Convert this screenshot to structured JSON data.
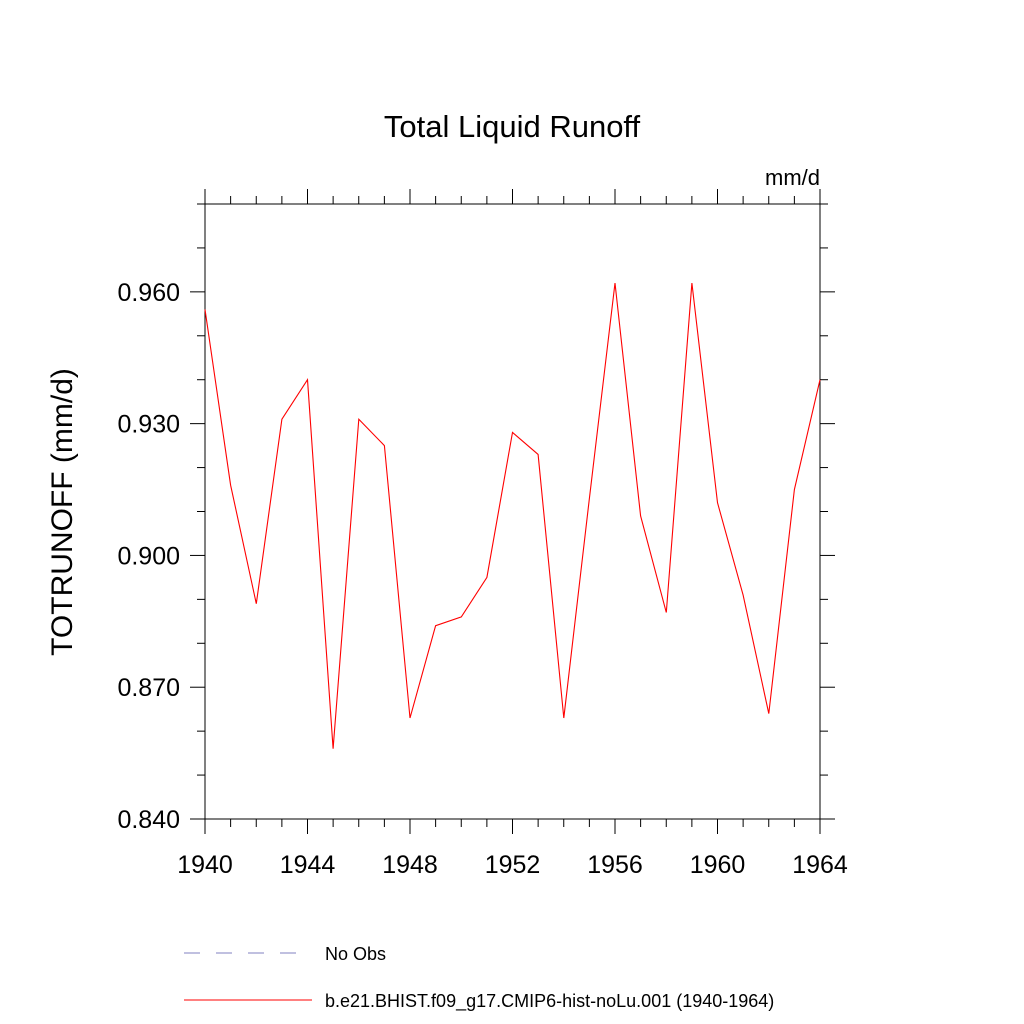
{
  "chart_data": {
    "type": "line",
    "title": "Total Liquid Runoff",
    "units_label": "mm/d",
    "ylabel": "TOTRUNOFF  (mm/d)",
    "xlabel": "",
    "xlim": [
      1940,
      1964
    ],
    "ylim": [
      0.84,
      0.98
    ],
    "x_ticks": [
      1940,
      1944,
      1948,
      1952,
      1956,
      1960,
      1964
    ],
    "x_tick_labels": [
      "1940",
      "1944",
      "1948",
      "1952",
      "1956",
      "1960",
      "1964"
    ],
    "y_ticks": [
      0.84,
      0.87,
      0.9,
      0.93,
      0.96
    ],
    "y_tick_labels": [
      "0.840",
      "0.870",
      "0.900",
      "0.930",
      "0.960"
    ],
    "grid": false,
    "legend_position": "bottom",
    "series": [
      {
        "name": "No Obs",
        "color": "#8080c0",
        "dash": "dashed",
        "x": [],
        "y": []
      },
      {
        "name": "b.e21.BHIST.f09_g17.CMIP6-hist-noLu.001 (1940-1964)",
        "color": "#ff0000",
        "dash": "solid",
        "x": [
          1940,
          1941,
          1942,
          1943,
          1944,
          1945,
          1946,
          1947,
          1948,
          1949,
          1950,
          1951,
          1952,
          1953,
          1954,
          1955,
          1956,
          1957,
          1958,
          1959,
          1960,
          1961,
          1962,
          1963,
          1964
        ],
        "y": [
          0.956,
          0.916,
          0.889,
          0.931,
          0.94,
          0.856,
          0.931,
          0.925,
          0.863,
          0.884,
          0.886,
          0.895,
          0.928,
          0.923,
          0.863,
          0.913,
          0.962,
          0.909,
          0.887,
          0.962,
          0.912,
          0.891,
          0.864,
          0.915,
          0.94
        ]
      }
    ]
  }
}
